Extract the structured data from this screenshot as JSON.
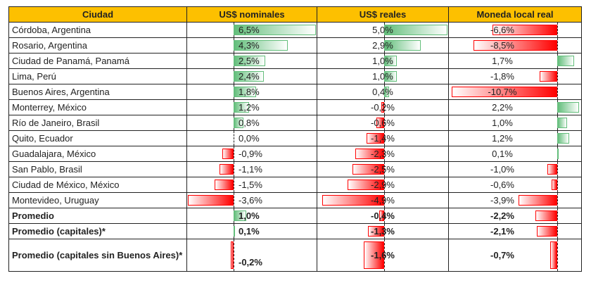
{
  "headers": [
    "Ciudad",
    "US$ nominales",
    "US$ reales",
    "Moneda local real"
  ],
  "rows": [
    {
      "city": "Córdoba, Argentina",
      "nom": 6.5,
      "real": 5.0,
      "local": -6.6,
      "nom_t": "6,5%",
      "real_t": "5,0%",
      "local_t": "-6,6%"
    },
    {
      "city": "Rosario, Argentina",
      "nom": 4.3,
      "real": 2.9,
      "local": -8.5,
      "nom_t": "4,3%",
      "real_t": "2,9%",
      "local_t": "-8,5%"
    },
    {
      "city": "Ciudad de Panamá, Panamá",
      "nom": 2.5,
      "real": 1.0,
      "local": 1.7,
      "nom_t": "2,5%",
      "real_t": "1,0%",
      "local_t": "1,7%"
    },
    {
      "city": "Lima, Perú",
      "nom": 2.4,
      "real": 1.0,
      "local": -1.8,
      "nom_t": "2,4%",
      "real_t": "1,0%",
      "local_t": "-1,8%"
    },
    {
      "city": "Buenos Aires, Argentina",
      "nom": 1.8,
      "real": 0.4,
      "local": -10.7,
      "nom_t": "1,8%",
      "real_t": "0,4%",
      "local_t": "-10,7%"
    },
    {
      "city": "Monterrey, México",
      "nom": 1.2,
      "real": -0.2,
      "local": 2.2,
      "nom_t": "1,2%",
      "real_t": "-0,2%",
      "local_t": "2,2%"
    },
    {
      "city": "Río de Janeiro, Brasil",
      "nom": 0.8,
      "real": -0.6,
      "local": 1.0,
      "nom_t": "0,8%",
      "real_t": "-0,6%",
      "local_t": "1,0%"
    },
    {
      "city": "Quito, Ecuador",
      "nom": 0.0,
      "real": -1.4,
      "local": 1.2,
      "nom_t": "0,0%",
      "real_t": "-1,4%",
      "local_t": "1,2%"
    },
    {
      "city": "Guadalajara, México",
      "nom": -0.9,
      "real": -2.3,
      "local": 0.1,
      "nom_t": "-0,9%",
      "real_t": "-2,3%",
      "local_t": "0,1%"
    },
    {
      "city": "San Pablo, Brasil",
      "nom": -1.1,
      "real": -2.5,
      "local": -1.0,
      "nom_t": "-1,1%",
      "real_t": "-2,5%",
      "local_t": "-1,0%"
    },
    {
      "city": "Ciudad de México, México",
      "nom": -1.5,
      "real": -2.9,
      "local": -0.6,
      "nom_t": "-1,5%",
      "real_t": "-2,9%",
      "local_t": "-0,6%"
    },
    {
      "city": "Montevideo, Uruguay",
      "nom": -3.6,
      "real": -4.9,
      "local": -3.9,
      "nom_t": "-3,6%",
      "real_t": "-4,9%",
      "local_t": "-3,9%"
    },
    {
      "city": "Promedio",
      "nom": 1.0,
      "real": -0.4,
      "local": -2.2,
      "nom_t": "1,0%",
      "real_t": "-0,4%",
      "local_t": "-2,2%",
      "bold": true
    },
    {
      "city": "Promedio (capitales)*",
      "nom": 0.1,
      "real": -1.3,
      "local": -2.1,
      "nom_t": "0,1%",
      "real_t": "-1,3%",
      "local_t": "-2,1%",
      "bold": true
    },
    {
      "city": "Promedio (capitales sin Buenos Aires)*",
      "nom": -0.2,
      "real": -1.6,
      "local": -0.7,
      "nom_t": "-0,2%",
      "real_t": "-1,6%",
      "local_t": "-0,7%",
      "bold": true,
      "tall": true
    }
  ]
}
